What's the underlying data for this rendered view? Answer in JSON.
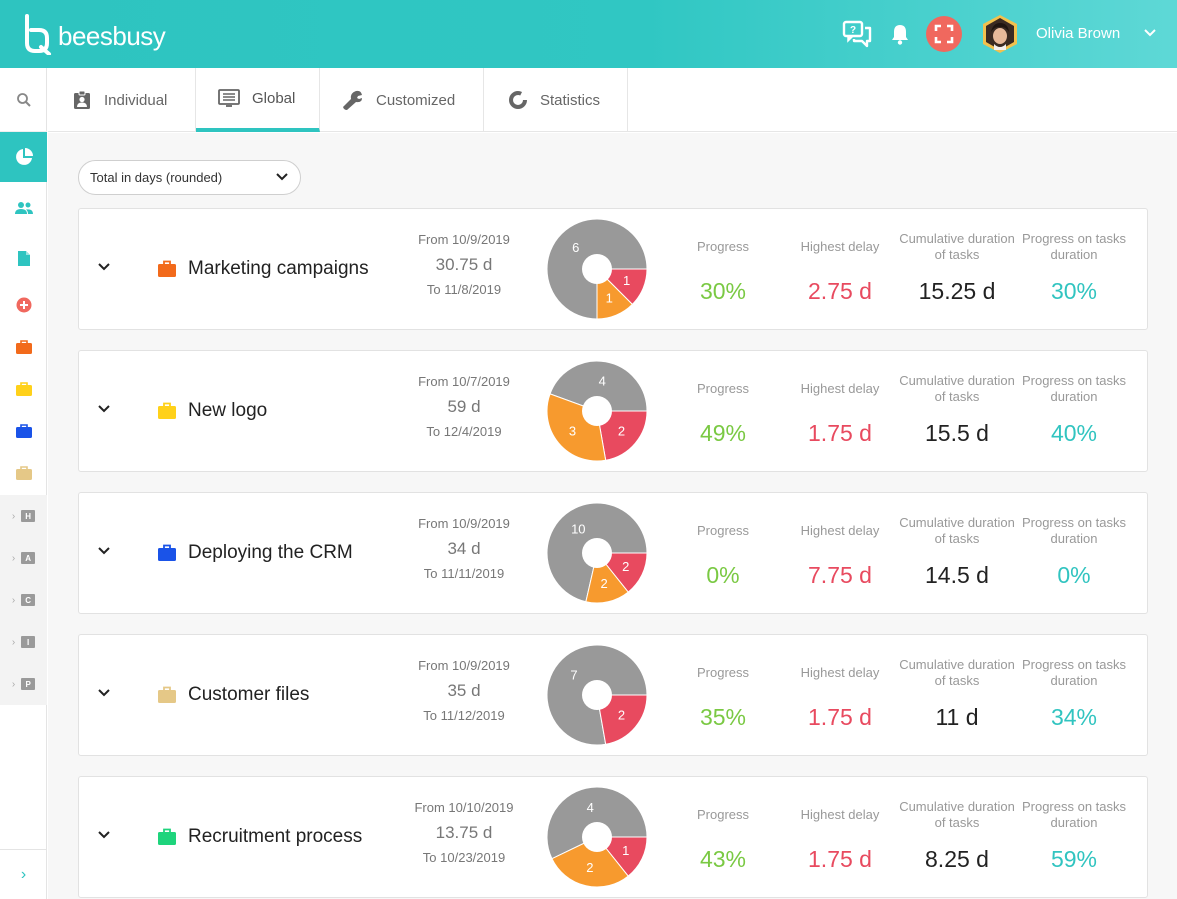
{
  "app": {
    "logo_text": "beesbusy"
  },
  "header": {
    "user_name": "Olivia Brown"
  },
  "tabs": [
    {
      "label": "Individual",
      "icon": "clipboard-user-icon"
    },
    {
      "label": "Global",
      "icon": "list-screen-icon",
      "active": true
    },
    {
      "label": "Customized",
      "icon": "wrench-icon"
    },
    {
      "label": "Statistics",
      "icon": "donut-chart-icon"
    }
  ],
  "filter": {
    "selected": "Total in days (rounded)"
  },
  "metric_labels": {
    "progress": "Progress",
    "delay": "Highest delay",
    "cumulative": "Cumulative duration of tasks",
    "progress_duration": "Progress on tasks duration"
  },
  "sidebar": {
    "letters": [
      "H",
      "A",
      "C",
      "I",
      "P"
    ]
  },
  "colors": {
    "accent": "#2ec4c0",
    "pie_grey": "#999999",
    "pie_orange": "#f79a2e",
    "pie_red": "#e84a5f"
  },
  "projects": [
    {
      "name": "Marketing campaigns",
      "bag_color": "#f26a1b",
      "from": "From 10/9/2019",
      "duration": "30.75 d",
      "to": "To 11/8/2019",
      "pie": [
        {
          "value": 6,
          "color": "grey",
          "label": "6"
        },
        {
          "value": 1,
          "color": "red",
          "label": "1"
        },
        {
          "value": 1,
          "color": "orange",
          "label": "1"
        }
      ],
      "progress": "30%",
      "delay": "2.75 d",
      "cumulative": "15.25 d",
      "progress_duration": "30%"
    },
    {
      "name": "New logo",
      "bag_color": "#ffd11a",
      "from": "From 10/7/2019",
      "duration": "59 d",
      "to": "To 12/4/2019",
      "pie": [
        {
          "value": 4,
          "color": "grey",
          "label": "4"
        },
        {
          "value": 2,
          "color": "red",
          "label": "2"
        },
        {
          "value": 3,
          "color": "orange",
          "label": "3"
        }
      ],
      "progress": "49%",
      "delay": "1.75 d",
      "cumulative": "15.5 d",
      "progress_duration": "40%"
    },
    {
      "name": "Deploying the CRM",
      "bag_color": "#1a53e8",
      "from": "From 10/9/2019",
      "duration": "34 d",
      "to": "To 11/11/2019",
      "pie": [
        {
          "value": 10,
          "color": "grey",
          "label": "10"
        },
        {
          "value": 2,
          "color": "red",
          "label": "2"
        },
        {
          "value": 2,
          "color": "orange",
          "label": "2"
        }
      ],
      "progress": "0%",
      "delay": "7.75 d",
      "cumulative": "14.5 d",
      "progress_duration": "0%"
    },
    {
      "name": "Customer files",
      "bag_color": "#e5c887",
      "from": "From 10/9/2019",
      "duration": "35 d",
      "to": "To 11/12/2019",
      "pie": [
        {
          "value": 7,
          "color": "grey",
          "label": "7"
        },
        {
          "value": 2,
          "color": "red",
          "label": "2"
        }
      ],
      "progress": "35%",
      "delay": "1.75 d",
      "cumulative": "11 d",
      "progress_duration": "34%"
    },
    {
      "name": "Recruitment process",
      "bag_color": "#1ed47c",
      "from": "From 10/10/2019",
      "duration": "13.75 d",
      "to": "To 10/23/2019",
      "pie": [
        {
          "value": 4,
          "color": "grey",
          "label": "4"
        },
        {
          "value": 1,
          "color": "red",
          "label": "1"
        },
        {
          "value": 2,
          "color": "orange",
          "label": "2"
        }
      ],
      "progress": "43%",
      "delay": "1.75 d",
      "cumulative": "8.25 d",
      "progress_duration": "59%"
    }
  ]
}
